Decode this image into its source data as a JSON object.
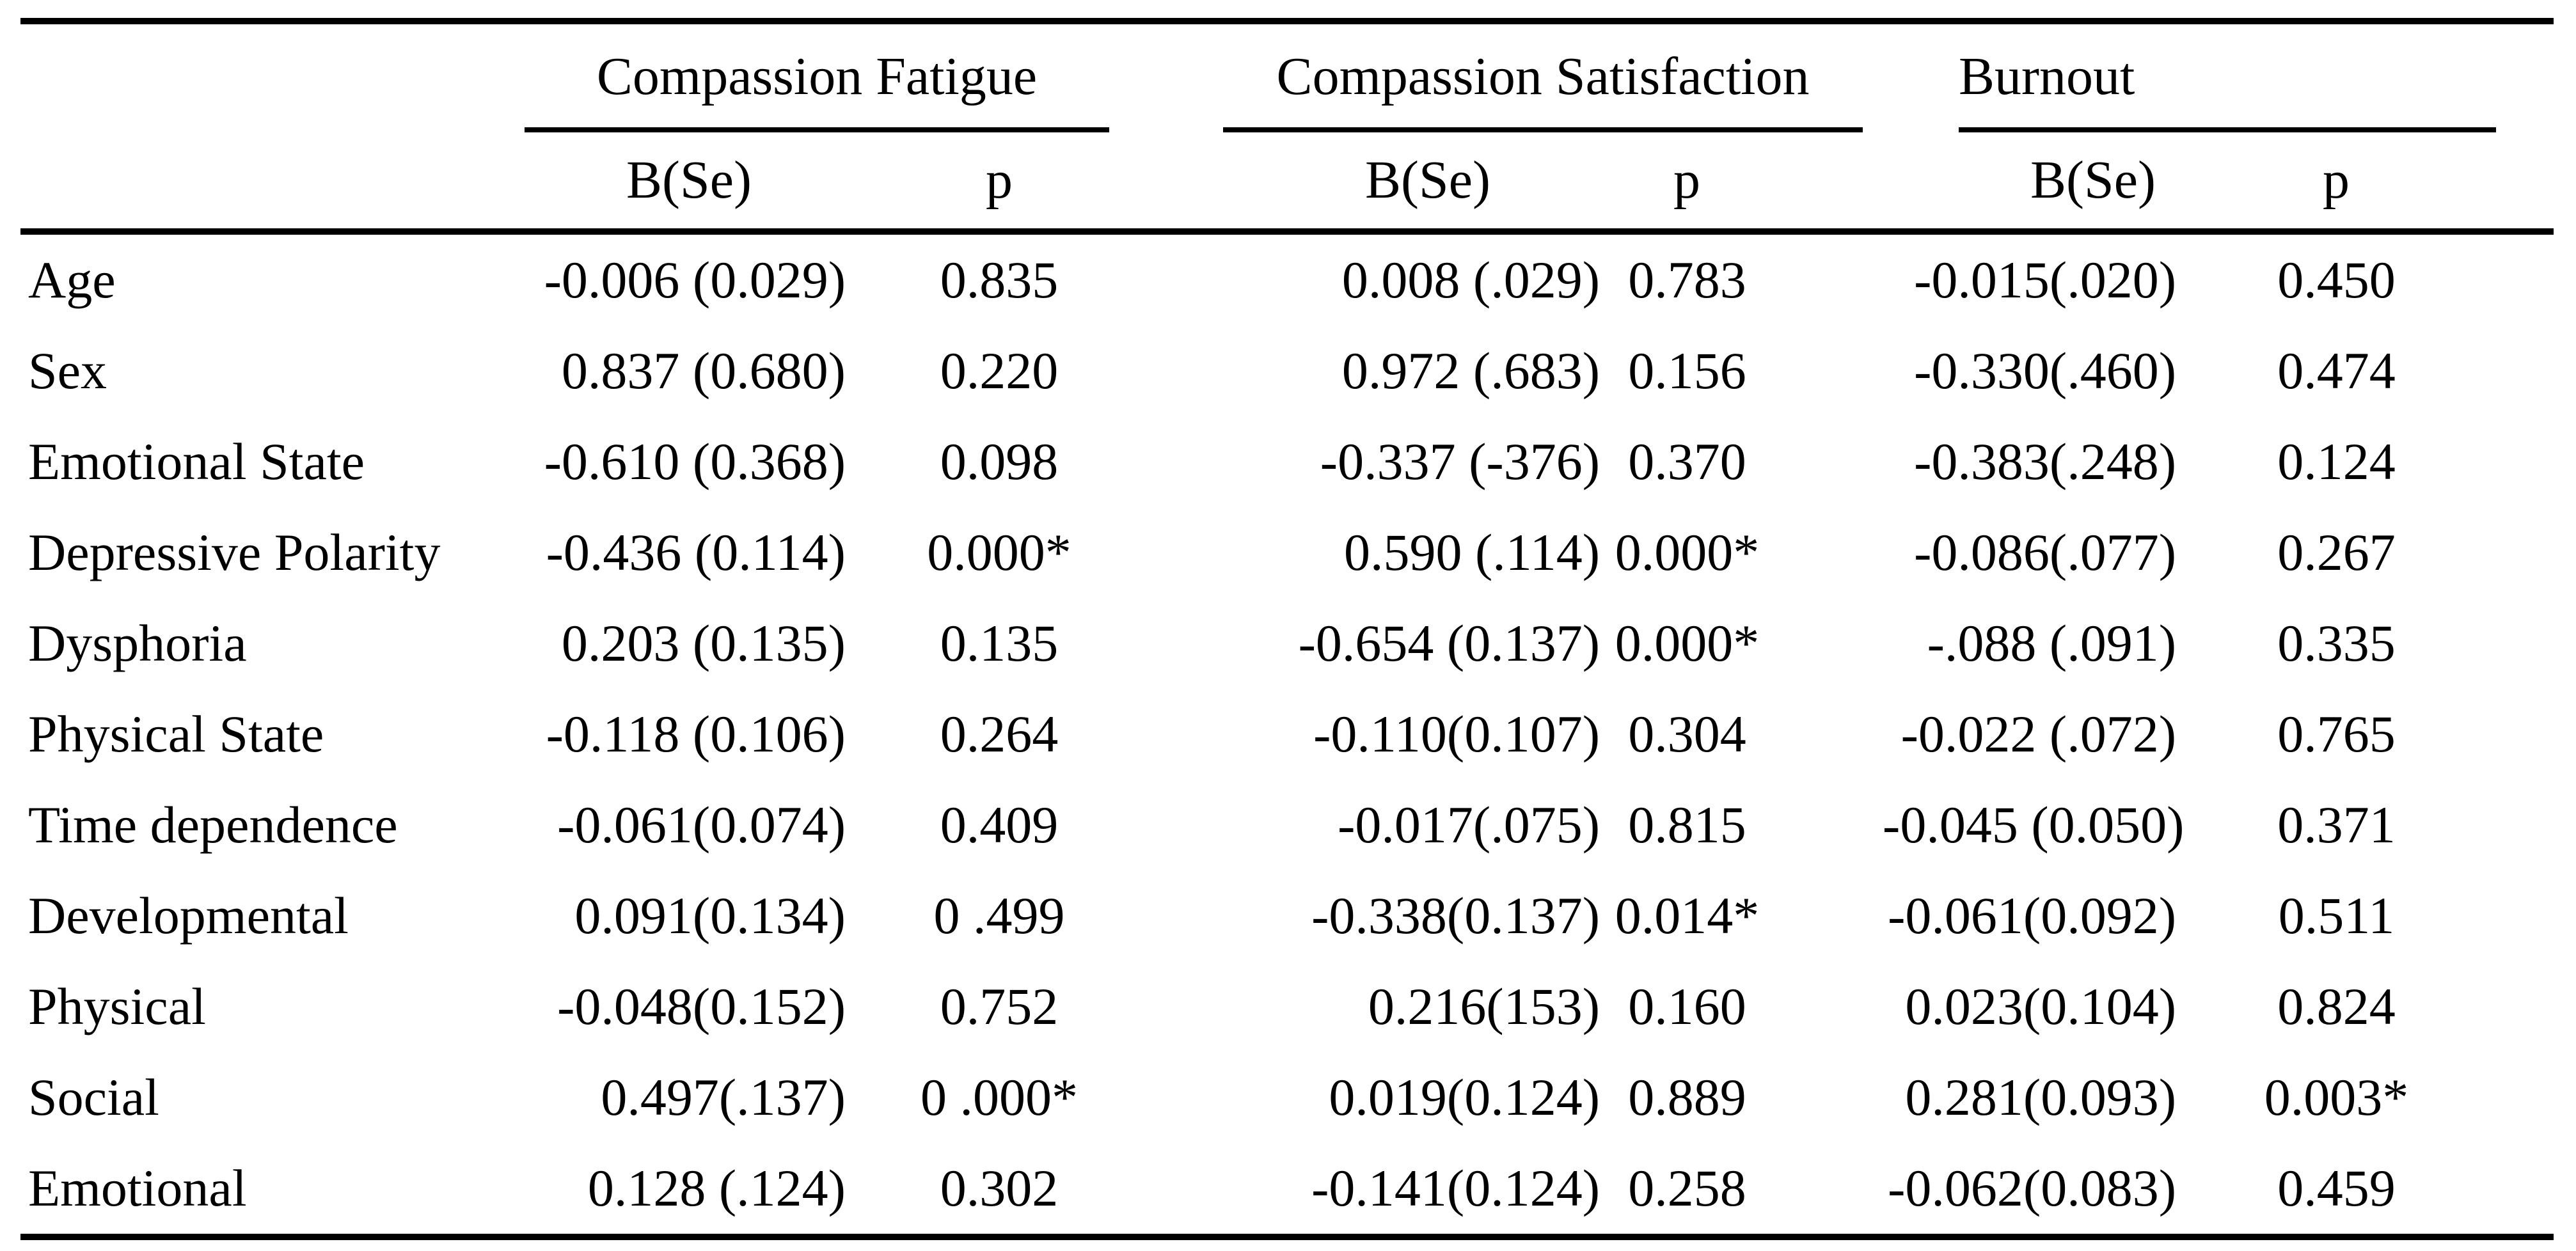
{
  "table": {
    "column_groups": [
      {
        "id": "cf",
        "label": "Compassion Fatigue"
      },
      {
        "id": "cs",
        "label": "Compassion Satisfaction"
      },
      {
        "id": "bo",
        "label": "Burnout"
      }
    ],
    "subheaders": {
      "b": "B(Se)",
      "p": "p"
    },
    "rows": [
      {
        "label": "Age",
        "cf_b": "-0.006 (0.029)",
        "cf_p": "0.835",
        "cs_b": "0.008 (.029)",
        "cs_p": "0.783",
        "bo_b": "-0.015(.020)",
        "bo_p": "0.450"
      },
      {
        "label": "Sex",
        "cf_b": "0.837 (0.680)",
        "cf_p": "0.220",
        "cs_b": "0.972 (.683)",
        "cs_p": "0.156",
        "bo_b": "-0.330(.460)",
        "bo_p": "0.474"
      },
      {
        "label": "Emotional State",
        "cf_b": "-0.610 (0.368)",
        "cf_p": "0.098",
        "cs_b": "-0.337 (-376)",
        "cs_p": "0.370",
        "bo_b": "-0.383(.248)",
        "bo_p": "0.124"
      },
      {
        "label": "Depressive Polarity",
        "cf_b": "-0.436 (0.114)",
        "cf_p": "0.000*",
        "cs_b": "0.590 (.114)",
        "cs_p": "0.000*",
        "bo_b": "-0.086(.077)",
        "bo_p": "0.267"
      },
      {
        "label": "Dysphoria",
        "cf_b": "0.203 (0.135)",
        "cf_p": "0.135",
        "cs_b": "-0.654 (0.137)",
        "cs_p": "0.000*",
        "bo_b": "-.088 (.091)",
        "bo_p": "0.335"
      },
      {
        "label": "Physical State",
        "cf_b": "-0.118 (0.106)",
        "cf_p": "0.264",
        "cs_b": "-0.110(0.107)",
        "cs_p": "0.304",
        "bo_b": "-0.022 (.072)",
        "bo_p": "0.765"
      },
      {
        "label": "Time dependence",
        "cf_b": "-0.061(0.074)",
        "cf_p": "0.409",
        "cs_b": "-0.017(.075)",
        "cs_p": "0.815",
        "bo_b": "-0.045 (0.050)",
        "bo_p": "0.371"
      },
      {
        "label": "Developmental",
        "cf_b": "0.091(0.134)",
        "cf_p": "0 .499",
        "cs_b": "-0.338(0.137)",
        "cs_p": "0.014*",
        "bo_b": "-0.061(0.092)",
        "bo_p": "0.511"
      },
      {
        "label": "Physical",
        "cf_b": "-0.048(0.152)",
        "cf_p": "0.752",
        "cs_b": "0.216(153)",
        "cs_p": "0.160",
        "bo_b": "0.023(0.104)",
        "bo_p": "0.824"
      },
      {
        "label": "Social",
        "cf_b": "0.497(.137)",
        "cf_p": "0 .000*",
        "cs_b": "0.019(0.124)",
        "cs_p": "0.889",
        "bo_b": "0.281(0.093)",
        "bo_p": "0.003*"
      },
      {
        "label": "Emotional",
        "cf_b": "0.128 (.124)",
        "cf_p": "0.302",
        "cs_b": "-0.141(0.124)",
        "cs_p": "0.258",
        "bo_b": "-0.062(0.083)",
        "bo_p": "0.459"
      }
    ]
  }
}
